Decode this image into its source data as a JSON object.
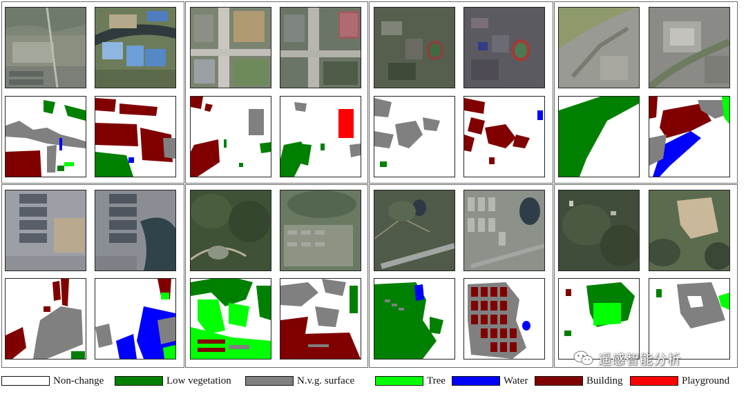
{
  "colors": {
    "non_change": "#ffffff",
    "low_vegetation": "#008000",
    "nvg_surface": "#808080",
    "tree": "#00ff00",
    "water": "#0000ff",
    "building": "#800000",
    "playground": "#ff0000"
  },
  "legend": [
    {
      "label": "Non-change",
      "color": "#ffffff",
      "name": "non-change"
    },
    {
      "label": "Low vegetation",
      "color": "#008000",
      "name": "low-vegetation"
    },
    {
      "label": "N.v.g. surface",
      "color": "#808080",
      "name": "nvg-surface"
    },
    {
      "label": "Tree",
      "color": "#00ff00",
      "name": "tree"
    },
    {
      "label": "Water",
      "color": "#0000ff",
      "name": "water"
    },
    {
      "label": "Building",
      "color": "#800000",
      "name": "building"
    },
    {
      "label": "Playground",
      "color": "#ff0000",
      "name": "playground"
    }
  ],
  "watermark": {
    "text": "遥感智能分析",
    "icon": "wechat-icon"
  },
  "samples": [
    {
      "id": "r1c1",
      "photo_tones": [
        "#8a8f80",
        "#6f7467",
        "#a4a89a"
      ],
      "label_tones": [
        "#808080",
        "#008000",
        "#800000"
      ]
    },
    {
      "id": "r1c2",
      "photo_tones": [
        "#80847a",
        "#b4a98a",
        "#6c7c5a"
      ],
      "label_tones": [
        "#800000",
        "#808080",
        "#ff0000"
      ]
    },
    {
      "id": "r1c3",
      "photo_tones": [
        "#4e5a45",
        "#6b6a62",
        "#8a3f3a"
      ],
      "label_tones": [
        "#808080",
        "#800000"
      ]
    },
    {
      "id": "r1c4",
      "photo_tones": [
        "#8e9a6c",
        "#9a9a94",
        "#6f7b60"
      ],
      "label_tones": [
        "#008000",
        "#800000",
        "#808080"
      ]
    },
    {
      "id": "r2c1",
      "photo_tones": [
        "#9ca0a6",
        "#b9a98e",
        "#595f68"
      ],
      "label_tones": [
        "#800000",
        "#808080",
        "#0000ff"
      ]
    },
    {
      "id": "r2c2",
      "photo_tones": [
        "#3f5236",
        "#8e9484",
        "#6a7a62"
      ],
      "label_tones": [
        "#008000",
        "#00ff00",
        "#800000"
      ]
    },
    {
      "id": "r2c3",
      "photo_tones": [
        "#4f5a48",
        "#a2a6a2",
        "#5a6852"
      ],
      "label_tones": [
        "#008000",
        "#800000",
        "#808080"
      ]
    },
    {
      "id": "r2c4",
      "photo_tones": [
        "#3f4d3a",
        "#c9b89a",
        "#5b6b4e"
      ],
      "label_tones": [
        "#00ff00",
        "#808080",
        "#008000"
      ]
    }
  ]
}
